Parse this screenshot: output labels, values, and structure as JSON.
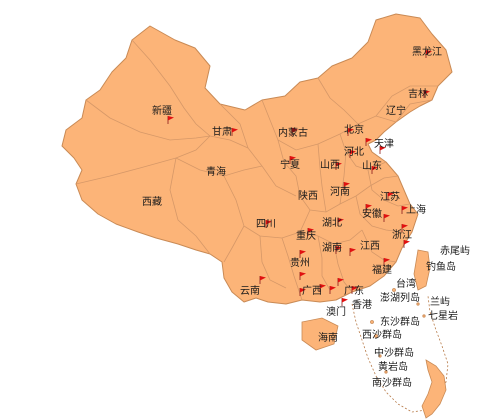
{
  "colors": {
    "land": "#fcb478",
    "border": "#c98a55",
    "flag": "#e01010",
    "text": "#1a1a1a"
  },
  "labels": {
    "heilongjiang": "黑龙江",
    "jilin": "吉林",
    "liaoning": "辽宁",
    "xinjiang": "新疆",
    "gansu": "甘肃",
    "neimenggu": "内蒙古",
    "beijing": "北京",
    "tianjin": "天津",
    "hebei": "河北",
    "shanxi": "山西",
    "shandong": "山东",
    "ningxia": "宁夏",
    "qinghai": "青海",
    "shaanxi": "陕西",
    "henan": "河南",
    "jiangsu": "江苏",
    "shanghai": "上海",
    "xizang": "西藏",
    "sichuan": "四川",
    "hubei": "湖北",
    "anhui": "安徽",
    "zhejiang": "浙江",
    "chongqing": "重庆",
    "hunan": "湖南",
    "jiangxi": "江西",
    "guizhou": "贵州",
    "fujian": "福建",
    "yunnan": "云南",
    "guangxi": "广西",
    "guangdong": "广东",
    "xianggang": "香港",
    "aomen": "澳门",
    "hainan": "海南",
    "taiwan": "台湾",
    "chiweiyu": "赤尾屿",
    "diaoyudao": "钓鱼岛",
    "penghu": "澎湖列岛",
    "lanyu": "兰屿",
    "qixingyan": "七星岩",
    "dongsha": "东沙群岛",
    "xisha": "西沙群岛",
    "zhongsha": "中沙群岛",
    "huangyandao": "黄岩岛",
    "nansha": "南沙群岛"
  }
}
